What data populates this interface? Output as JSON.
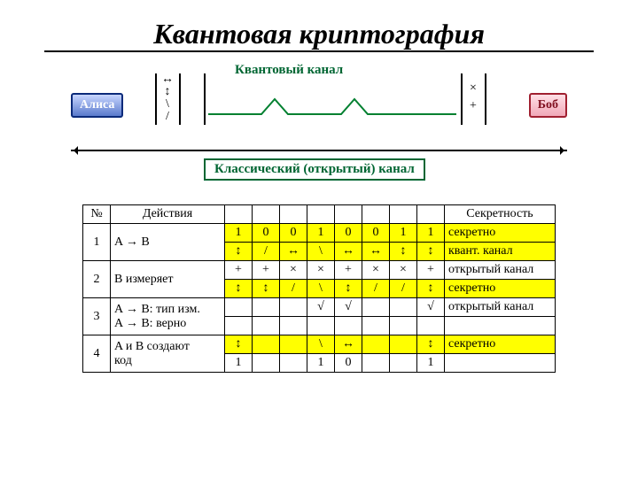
{
  "title": "Квантовая криптография",
  "diagram": {
    "alice": "Алиса",
    "bob": "Боб",
    "quantum_label": "Квантовый канал",
    "classical_label": "Классический (открытый) канал",
    "alice_symbols": [
      "↔",
      "↕",
      "\\",
      "/"
    ],
    "bob_symbols": [
      "×",
      "+"
    ],
    "colors": {
      "green": "#006633",
      "alice_border": "#0b2a7a",
      "bob_border": "#a02030",
      "highlight": "#ffff00"
    }
  },
  "table": {
    "head": [
      "№",
      "Действия",
      "",
      "",
      "",
      "",
      "",
      "",
      "",
      "",
      "Секретность"
    ],
    "rows": [
      {
        "num": "1",
        "act": "A → B",
        "bits": [
          "1",
          "0",
          "0",
          "1",
          "0",
          "0",
          "1",
          "1"
        ],
        "sec": "секретно",
        "hl": true
      },
      {
        "num": "",
        "act": "",
        "bits": [
          "↕",
          "/",
          "↔",
          "\\",
          "↔",
          "↔",
          "↕",
          "↕"
        ],
        "sec": "квант. канал",
        "hl": true
      },
      {
        "num": "2",
        "act": "B измеряет",
        "bits": [
          "+",
          "+",
          "×",
          "×",
          "+",
          "×",
          "×",
          "+"
        ],
        "sec": "открытый канал",
        "hl": false
      },
      {
        "num": "",
        "act": "",
        "bits": [
          "↕",
          "↕",
          "/",
          "\\",
          "↕",
          "/",
          "/",
          "↕"
        ],
        "sec": "секретно",
        "hl": true
      },
      {
        "num": "3",
        "act": "A → B: тип изм.",
        "bits": [
          "",
          "",
          "",
          "√",
          "√",
          "",
          "",
          "√"
        ],
        "sec": "открытый канал",
        "hl": false
      },
      {
        "num": "",
        "act": "A → B: верно",
        "bits": [
          "",
          "",
          "",
          "",
          "",
          "",
          "",
          ""
        ],
        "sec": "",
        "hl": false
      },
      {
        "num": "4",
        "act": "A и B создают",
        "bits": [
          "↕",
          "",
          "",
          "\\",
          "↔",
          "",
          "",
          "↕"
        ],
        "sec": "секретно",
        "hl": true
      },
      {
        "num": "",
        "act": "код",
        "bits": [
          "1",
          "",
          "",
          "1",
          "0",
          "",
          "",
          "1"
        ],
        "sec": "",
        "hl": false
      }
    ],
    "col_widths": {
      "num": 22,
      "act": 120,
      "bit": 22,
      "sec": 116
    },
    "font_size": 14
  }
}
